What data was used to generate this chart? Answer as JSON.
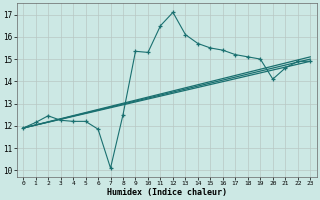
{
  "xlabel": "Humidex (Indice chaleur)",
  "background_color": "#cce8e4",
  "grid_color": "#b8c8c4",
  "line_color": "#1a7070",
  "xlim": [
    -0.5,
    23.5
  ],
  "ylim": [
    9.7,
    17.5
  ],
  "xticks": [
    0,
    1,
    2,
    3,
    4,
    5,
    6,
    7,
    8,
    9,
    10,
    11,
    12,
    13,
    14,
    15,
    16,
    17,
    18,
    19,
    20,
    21,
    22,
    23
  ],
  "yticks": [
    10,
    11,
    12,
    13,
    14,
    15,
    16,
    17
  ],
  "lines": [
    {
      "x": [
        0,
        1,
        2,
        3,
        4,
        5,
        6,
        7,
        8,
        9,
        10,
        11,
        12,
        13,
        14,
        15,
        16,
        17,
        18,
        19,
        20,
        21,
        22,
        23
      ],
      "y": [
        11.9,
        12.15,
        12.45,
        12.25,
        12.2,
        12.2,
        11.85,
        10.1,
        12.5,
        15.35,
        15.3,
        16.5,
        17.1,
        16.1,
        15.7,
        15.5,
        15.4,
        15.2,
        15.1,
        15.0,
        14.1,
        14.6,
        14.9,
        14.9
      ],
      "marker": true
    },
    {
      "x": [
        0,
        23
      ],
      "y": [
        11.9,
        14.9
      ],
      "marker": false
    },
    {
      "x": [
        0,
        23
      ],
      "y": [
        11.9,
        15.1
      ],
      "marker": false
    },
    {
      "x": [
        0,
        23
      ],
      "y": [
        11.9,
        15.0
      ],
      "marker": false
    }
  ]
}
